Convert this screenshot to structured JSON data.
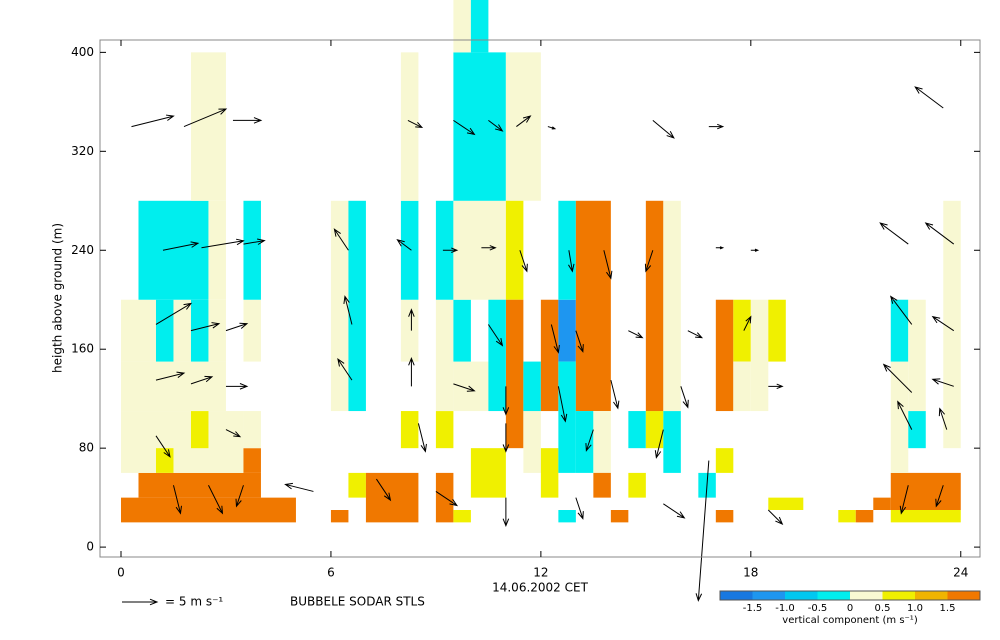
{
  "chart_data": {
    "type": "heatmap",
    "xlabel": "14.06.2002 CET",
    "ylabel": "heigth above ground (m)",
    "footer": "BUBBELE SODAR STLS",
    "xlim": [
      -0.6,
      24.55
    ],
    "xticks": [
      0,
      6,
      12,
      18,
      24
    ],
    "ylim": [
      -8,
      410
    ],
    "yticks": [
      0,
      80,
      160,
      240,
      320,
      400
    ],
    "arrow_key": {
      "speed": 5,
      "label": "= 5 m s⁻¹"
    },
    "colorbar": {
      "label": "vertical component (m s⁻¹)",
      "bounds": [
        -2,
        -1.5,
        -1,
        -0.5,
        0,
        0.5,
        1,
        1.5,
        2
      ],
      "colors": [
        "#1878e0",
        "#1e96f0",
        "#00c8f0",
        "#00eeee",
        "#f8f8d2",
        "#f0f000",
        "#f0b400",
        "#f07800"
      ],
      "ticks": [
        -1.5,
        {
          "value": -1,
          "label": "-1.0"
        },
        -0.5,
        0,
        0.5,
        {
          "value": 1,
          "label": "1.0"
        },
        1.5
      ]
    },
    "cells": [
      {
        "t0": 0,
        "t1": 5,
        "h0": 20,
        "h1": 40,
        "w": 1.8
      },
      {
        "t0": 0.5,
        "t1": 4,
        "h0": 40,
        "h1": 60,
        "w": 1.8
      },
      {
        "t0": 0,
        "t1": 3.5,
        "h0": 60,
        "h1": 110,
        "w": 0.2
      },
      {
        "t0": 1,
        "t1": 1.5,
        "h0": 60,
        "h1": 80,
        "w": 0.7
      },
      {
        "t0": 3.5,
        "t1": 4,
        "h0": 60,
        "h1": 80,
        "w": 1.8
      },
      {
        "t0": 2,
        "t1": 2.5,
        "h0": 80,
        "h1": 110,
        "w": 0.7
      },
      {
        "t0": 3.5,
        "t1": 4,
        "h0": 80,
        "h1": 110,
        "w": 0.2
      },
      {
        "t0": 0,
        "t1": 3,
        "h0": 110,
        "h1": 150,
        "w": 0.2
      },
      {
        "t0": 0,
        "t1": 1,
        "h0": 150,
        "h1": 200,
        "w": 0.2
      },
      {
        "t0": 1,
        "t1": 1.5,
        "h0": 150,
        "h1": 200,
        "w": -0.3
      },
      {
        "t0": 1.5,
        "t1": 2,
        "h0": 150,
        "h1": 200,
        "w": 0.2
      },
      {
        "t0": 2,
        "t1": 2.5,
        "h0": 150,
        "h1": 200,
        "w": -0.3
      },
      {
        "t0": 2.5,
        "t1": 3,
        "h0": 150,
        "h1": 200,
        "w": 0.2
      },
      {
        "t0": 3.5,
        "t1": 4,
        "h0": 150,
        "h1": 200,
        "w": 0.2
      },
      {
        "t0": 0.5,
        "t1": 2.5,
        "h0": 200,
        "h1": 280,
        "w": -0.3
      },
      {
        "t0": 2.5,
        "t1": 3,
        "h0": 200,
        "h1": 280,
        "w": 0.2
      },
      {
        "t0": 3.5,
        "t1": 4,
        "h0": 200,
        "h1": 280,
        "w": -0.3
      },
      {
        "t0": 2,
        "t1": 3,
        "h0": 280,
        "h1": 400,
        "w": 0.2
      },
      {
        "t0": 6,
        "t1": 6.5,
        "h0": 20,
        "h1": 30,
        "w": 1.8
      },
      {
        "t0": 6.5,
        "t1": 7,
        "h0": 40,
        "h1": 60,
        "w": 0.7
      },
      {
        "t0": 7,
        "t1": 8.5,
        "h0": 20,
        "h1": 60,
        "w": 1.8
      },
      {
        "t0": 6,
        "t1": 6.5,
        "h0": 110,
        "h1": 280,
        "w": 0.2
      },
      {
        "t0": 6.5,
        "t1": 7,
        "h0": 110,
        "h1": 280,
        "w": -0.3
      },
      {
        "t0": 8,
        "t1": 8.5,
        "h0": 80,
        "h1": 110,
        "w": 0.7
      },
      {
        "t0": 8,
        "t1": 8.5,
        "h0": 150,
        "h1": 200,
        "w": 0.2
      },
      {
        "t0": 8,
        "t1": 8.5,
        "h0": 200,
        "h1": 280,
        "w": -0.3
      },
      {
        "t0": 8,
        "t1": 8.5,
        "h0": 280,
        "h1": 400,
        "w": 0.2
      },
      {
        "t0": 9,
        "t1": 9.5,
        "h0": 20,
        "h1": 60,
        "w": 1.8
      },
      {
        "t0": 9,
        "t1": 9.5,
        "h0": 80,
        "h1": 110,
        "w": 0.7
      },
      {
        "t0": 9,
        "t1": 9.5,
        "h0": 110,
        "h1": 200,
        "w": 0.2
      },
      {
        "t0": 9,
        "t1": 9.5,
        "h0": 200,
        "h1": 280,
        "w": -0.3
      },
      {
        "t0": 9.5,
        "t1": 10.5,
        "h0": 110,
        "h1": 150,
        "w": 0.2
      },
      {
        "t0": 9.5,
        "t1": 10,
        "h0": 150,
        "h1": 200,
        "w": -0.3
      },
      {
        "t0": 9.5,
        "t1": 11,
        "h0": 200,
        "h1": 280,
        "w": 0.2
      },
      {
        "t0": 9.5,
        "t1": 11,
        "h0": 280,
        "h1": 400,
        "w": -0.3
      },
      {
        "t0": 9.5,
        "t1": 10,
        "h0": 400,
        "h1": 445,
        "w": 0.2
      },
      {
        "t0": 10,
        "t1": 10.5,
        "h0": 400,
        "h1": 445,
        "w": -0.3
      },
      {
        "t0": 11,
        "t1": 12,
        "h0": 280,
        "h1": 400,
        "w": 0.2
      },
      {
        "t0": 11,
        "t1": 11.5,
        "h0": 200,
        "h1": 280,
        "w": 0.7
      },
      {
        "t0": 11,
        "t1": 11.5,
        "h0": 80,
        "h1": 200,
        "w": 1.8
      },
      {
        "t0": 10.5,
        "t1": 11,
        "h0": 110,
        "h1": 200,
        "w": -0.3
      },
      {
        "t0": 10,
        "t1": 11,
        "h0": 40,
        "h1": 80,
        "w": 0.7
      },
      {
        "t0": 9.5,
        "t1": 10,
        "h0": 20,
        "h1": 30,
        "w": 0.7
      },
      {
        "t0": 11.5,
        "t1": 12,
        "h0": 60,
        "h1": 110,
        "w": 0.2
      },
      {
        "t0": 11.5,
        "t1": 12,
        "h0": 110,
        "h1": 150,
        "w": -0.3
      },
      {
        "t0": 12,
        "t1": 12.5,
        "h0": 110,
        "h1": 200,
        "w": 1.8
      },
      {
        "t0": 12,
        "t1": 12.5,
        "h0": 40,
        "h1": 80,
        "w": 0.7
      },
      {
        "t0": 12.5,
        "t1": 13,
        "h0": 150,
        "h1": 200,
        "w": -1.3
      },
      {
        "t0": 12.5,
        "t1": 13,
        "h0": 200,
        "h1": 280,
        "w": -0.3
      },
      {
        "t0": 12.5,
        "t1": 13,
        "h0": 60,
        "h1": 150,
        "w": -0.3
      },
      {
        "t0": 12.5,
        "t1": 13,
        "h0": 20,
        "h1": 30,
        "w": -0.3
      },
      {
        "t0": 13,
        "t1": 14,
        "h0": 110,
        "h1": 280,
        "w": 1.8
      },
      {
        "t0": 13,
        "t1": 13.5,
        "h0": 60,
        "h1": 110,
        "w": -0.3
      },
      {
        "t0": 13.5,
        "t1": 14,
        "h0": 60,
        "h1": 110,
        "w": 0.2
      },
      {
        "t0": 13.5,
        "t1": 14,
        "h0": 40,
        "h1": 60,
        "w": 1.8
      },
      {
        "t0": 14,
        "t1": 14.5,
        "h0": 20,
        "h1": 30,
        "w": 1.8
      },
      {
        "t0": 14.5,
        "t1": 15,
        "h0": 40,
        "h1": 60,
        "w": 0.7
      },
      {
        "t0": 14.5,
        "t1": 15,
        "h0": 80,
        "h1": 110,
        "w": -0.3
      },
      {
        "t0": 15,
        "t1": 15.5,
        "h0": 80,
        "h1": 110,
        "w": 0.7
      },
      {
        "t0": 15,
        "t1": 15.5,
        "h0": 110,
        "h1": 280,
        "w": 1.8
      },
      {
        "t0": 15.5,
        "t1": 16,
        "h0": 60,
        "h1": 110,
        "w": -0.3
      },
      {
        "t0": 15.5,
        "t1": 16,
        "h0": 110,
        "h1": 280,
        "w": 0.2
      },
      {
        "t0": 16.5,
        "t1": 17,
        "h0": 40,
        "h1": 60,
        "w": -0.3
      },
      {
        "t0": 17,
        "t1": 17.5,
        "h0": 110,
        "h1": 200,
        "w": 1.8
      },
      {
        "t0": 17,
        "t1": 17.5,
        "h0": 60,
        "h1": 80,
        "w": 0.7
      },
      {
        "t0": 17,
        "t1": 17.5,
        "h0": 20,
        "h1": 30,
        "w": 1.8
      },
      {
        "t0": 17.5,
        "t1": 18,
        "h0": 150,
        "h1": 200,
        "w": 0.7
      },
      {
        "t0": 17.5,
        "t1": 18,
        "h0": 110,
        "h1": 150,
        "w": 0.2
      },
      {
        "t0": 18,
        "t1": 18.5,
        "h0": 110,
        "h1": 200,
        "w": 0.2
      },
      {
        "t0": 18.5,
        "t1": 19,
        "h0": 150,
        "h1": 200,
        "w": 0.7
      },
      {
        "t0": 18.5,
        "t1": 19.5,
        "h0": 30,
        "h1": 40,
        "w": 0.7
      },
      {
        "t0": 20.5,
        "t1": 21,
        "h0": 20,
        "h1": 30,
        "w": 0.7
      },
      {
        "t0": 21,
        "t1": 21.5,
        "h0": 20,
        "h1": 30,
        "w": 1.8
      },
      {
        "t0": 21.5,
        "t1": 22,
        "h0": 30,
        "h1": 40,
        "w": 1.8
      },
      {
        "t0": 22,
        "t1": 24,
        "h0": 20,
        "h1": 30,
        "w": 0.7
      },
      {
        "t0": 22,
        "t1": 24,
        "h0": 30,
        "h1": 60,
        "w": 1.8
      },
      {
        "t0": 22,
        "t1": 22.5,
        "h0": 60,
        "h1": 150,
        "w": 0.2
      },
      {
        "t0": 22,
        "t1": 22.5,
        "h0": 150,
        "h1": 200,
        "w": -0.3
      },
      {
        "t0": 22.5,
        "t1": 23,
        "h0": 80,
        "h1": 110,
        "w": -0.3
      },
      {
        "t0": 22.5,
        "t1": 23,
        "h0": 110,
        "h1": 200,
        "w": 0.2
      },
      {
        "t0": 23.5,
        "t1": 24,
        "h0": 80,
        "h1": 280,
        "w": 0.2
      }
    ],
    "arrows": [
      {
        "t": 0.3,
        "h": 340,
        "u": 6,
        "v": 1.5
      },
      {
        "t": 1.8,
        "h": 340,
        "u": 6,
        "v": 2.5
      },
      {
        "t": 3.2,
        "h": 345,
        "u": 4,
        "v": 0
      },
      {
        "t": 8.2,
        "h": 345,
        "u": 2,
        "v": -1
      },
      {
        "t": 9.5,
        "h": 345,
        "u": 3,
        "v": -2
      },
      {
        "t": 10.5,
        "h": 345,
        "u": 2,
        "v": -1.5
      },
      {
        "t": 11.3,
        "h": 340,
        "u": 2,
        "v": 1.5
      },
      {
        "t": 12.2,
        "h": 340,
        "u": 1,
        "v": -0.3
      },
      {
        "t": 15.2,
        "h": 345,
        "u": 3,
        "v": -2.5
      },
      {
        "t": 16.8,
        "h": 340,
        "u": 2,
        "v": 0
      },
      {
        "t": 23.5,
        "h": 355,
        "u": -4,
        "v": 3
      },
      {
        "t": 1.2,
        "h": 240,
        "u": 5,
        "v": 1
      },
      {
        "t": 2.3,
        "h": 242,
        "u": 6,
        "v": 1
      },
      {
        "t": 3.5,
        "h": 245,
        "u": 3,
        "v": 0.5
      },
      {
        "t": 6.5,
        "h": 240,
        "u": -2,
        "v": 3
      },
      {
        "t": 8.3,
        "h": 240,
        "u": -2,
        "v": 1.5
      },
      {
        "t": 9.2,
        "h": 240,
        "u": 2,
        "v": 0
      },
      {
        "t": 10.3,
        "h": 242,
        "u": 2,
        "v": 0
      },
      {
        "t": 11.4,
        "h": 240,
        "u": 1,
        "v": -3
      },
      {
        "t": 12.8,
        "h": 240,
        "u": 0.5,
        "v": -3
      },
      {
        "t": 13.8,
        "h": 240,
        "u": 1,
        "v": -4
      },
      {
        "t": 15.2,
        "h": 240,
        "u": -1,
        "v": -3
      },
      {
        "t": 17,
        "h": 242,
        "u": 1,
        "v": 0
      },
      {
        "t": 18,
        "h": 240,
        "u": 1,
        "v": 0
      },
      {
        "t": 22.5,
        "h": 245,
        "u": -4,
        "v": 3
      },
      {
        "t": 23.8,
        "h": 245,
        "u": -4,
        "v": 3
      },
      {
        "t": 1,
        "h": 180,
        "u": 5,
        "v": 3
      },
      {
        "t": 2,
        "h": 175,
        "u": 4,
        "v": 1
      },
      {
        "t": 3,
        "h": 175,
        "u": 3,
        "v": 1
      },
      {
        "t": 6.6,
        "h": 180,
        "u": -1,
        "v": 4
      },
      {
        "t": 8.3,
        "h": 175,
        "u": 0,
        "v": 3
      },
      {
        "t": 10.5,
        "h": 180,
        "u": 2,
        "v": -3
      },
      {
        "t": 12.3,
        "h": 180,
        "u": 1,
        "v": -4
      },
      {
        "t": 13,
        "h": 175,
        "u": 1,
        "v": -3
      },
      {
        "t": 14.5,
        "h": 175,
        "u": 2,
        "v": -1
      },
      {
        "t": 16.2,
        "h": 175,
        "u": 2,
        "v": -1
      },
      {
        "t": 17.8,
        "h": 175,
        "u": 1,
        "v": 2
      },
      {
        "t": 22.6,
        "h": 180,
        "u": -3,
        "v": 4
      },
      {
        "t": 23.8,
        "h": 175,
        "u": -3,
        "v": 2
      },
      {
        "t": 1,
        "h": 135,
        "u": 4,
        "v": 1
      },
      {
        "t": 2,
        "h": 132,
        "u": 3,
        "v": 1
      },
      {
        "t": 3,
        "h": 130,
        "u": 3,
        "v": 0
      },
      {
        "t": 6.6,
        "h": 135,
        "u": -2,
        "v": 3
      },
      {
        "t": 8.3,
        "h": 130,
        "u": 0,
        "v": 4
      },
      {
        "t": 9.5,
        "h": 132,
        "u": 3,
        "v": -1
      },
      {
        "t": 11,
        "h": 130,
        "u": 0,
        "v": -4
      },
      {
        "t": 12.5,
        "h": 130,
        "u": 1,
        "v": -5
      },
      {
        "t": 14,
        "h": 135,
        "u": 1,
        "v": -4
      },
      {
        "t": 16,
        "h": 130,
        "u": 1,
        "v": -3
      },
      {
        "t": 18.5,
        "h": 130,
        "u": 2,
        "v": 0
      },
      {
        "t": 22.6,
        "h": 125,
        "u": -4,
        "v": 4
      },
      {
        "t": 23.8,
        "h": 130,
        "u": -3,
        "v": 1
      },
      {
        "t": 1,
        "h": 90,
        "u": 2,
        "v": -3
      },
      {
        "t": 3,
        "h": 95,
        "u": 2,
        "v": -1
      },
      {
        "t": 8.5,
        "h": 100,
        "u": 1,
        "v": -4
      },
      {
        "t": 11,
        "h": 100,
        "u": 0,
        "v": -4
      },
      {
        "t": 13.5,
        "h": 95,
        "u": -1,
        "v": -3
      },
      {
        "t": 15.5,
        "h": 95,
        "u": -1,
        "v": -4
      },
      {
        "t": 22.6,
        "h": 95,
        "u": -2,
        "v": 4
      },
      {
        "t": 23.6,
        "h": 95,
        "u": -1,
        "v": 3
      },
      {
        "t": 1.5,
        "h": 50,
        "u": 1,
        "v": -4
      },
      {
        "t": 2.5,
        "h": 50,
        "u": 2,
        "v": -4
      },
      {
        "t": 3.5,
        "h": 50,
        "u": -1,
        "v": -3
      },
      {
        "t": 5.5,
        "h": 45,
        "u": -4,
        "v": 1
      },
      {
        "t": 7.3,
        "h": 55,
        "u": 2,
        "v": -3
      },
      {
        "t": 9,
        "h": 45,
        "u": 3,
        "v": -2
      },
      {
        "t": 11,
        "h": 40,
        "u": 0,
        "v": -4
      },
      {
        "t": 13,
        "h": 40,
        "u": 1,
        "v": -3
      },
      {
        "t": 15.5,
        "h": 35,
        "u": 3,
        "v": -2
      },
      {
        "t": 16.8,
        "h": 70,
        "u": -1.5,
        "v": -20
      },
      {
        "t": 18.5,
        "h": 30,
        "u": 2,
        "v": -2
      },
      {
        "t": 22.5,
        "h": 50,
        "u": -1,
        "v": -4
      },
      {
        "t": 23.5,
        "h": 50,
        "u": -1,
        "v": -3
      }
    ]
  }
}
